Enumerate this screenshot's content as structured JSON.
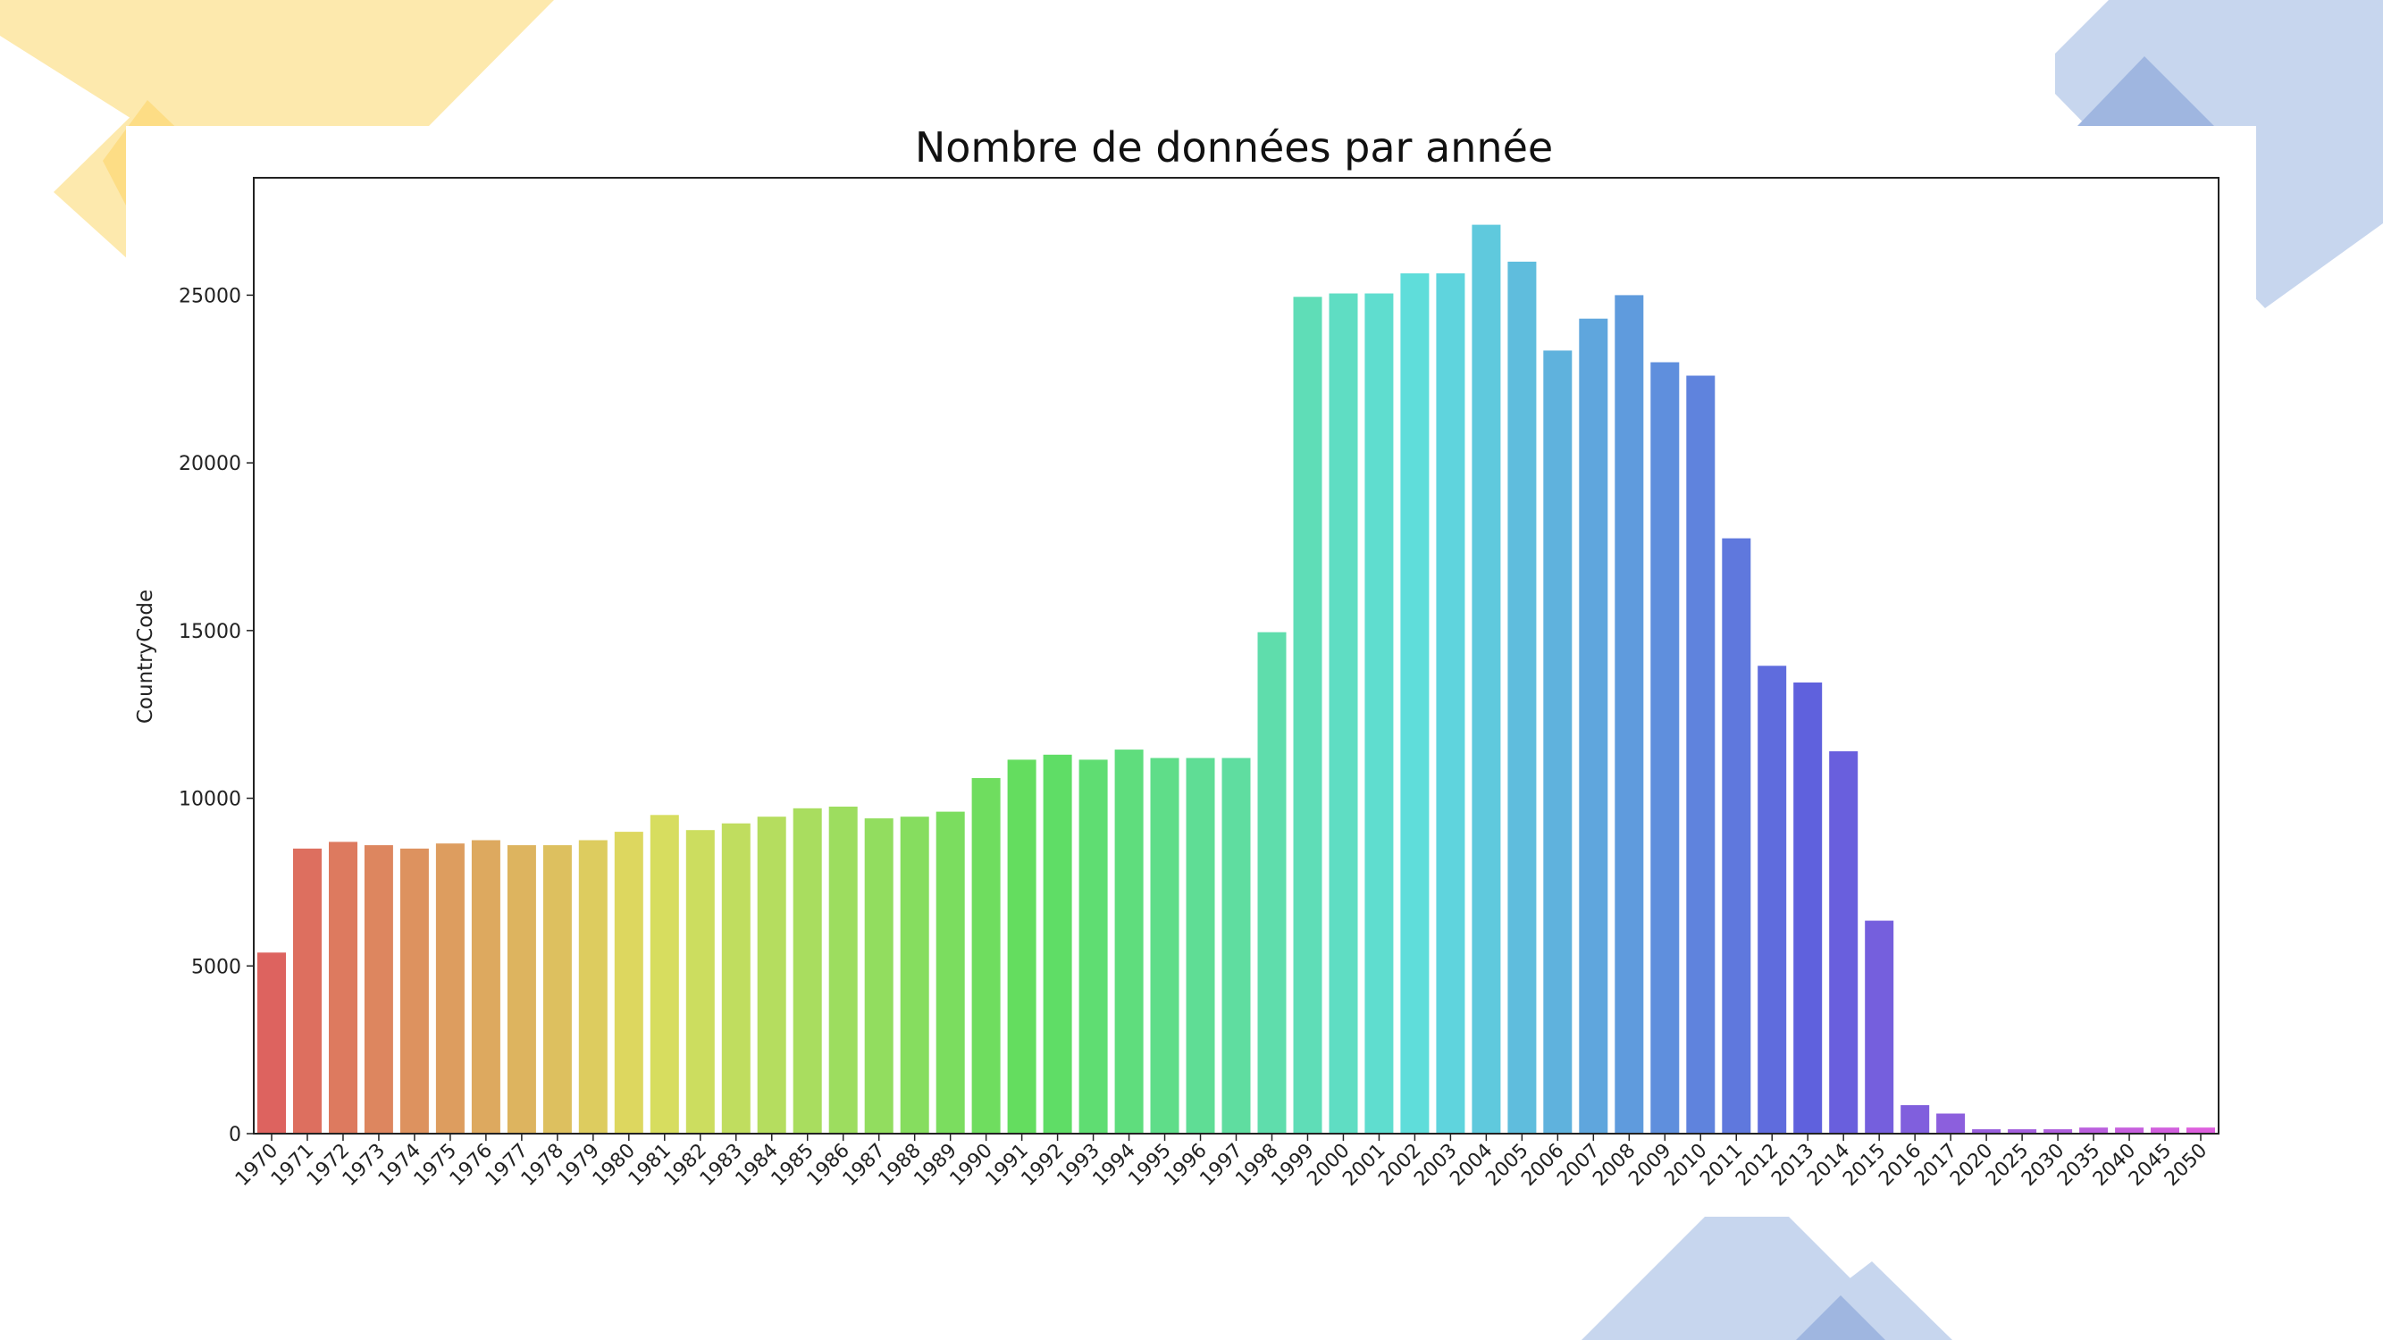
{
  "chart_data": {
    "type": "bar",
    "title": "Nombre de données par année",
    "xlabel": "",
    "ylabel": "CountryCode",
    "ylim": [
      0,
      28500
    ],
    "yticks": [
      0,
      5000,
      10000,
      15000,
      20000,
      25000
    ],
    "grid": false,
    "categories": [
      "1970",
      "1971",
      "1972",
      "1973",
      "1974",
      "1975",
      "1976",
      "1977",
      "1978",
      "1979",
      "1980",
      "1981",
      "1982",
      "1983",
      "1984",
      "1985",
      "1986",
      "1987",
      "1988",
      "1989",
      "1990",
      "1991",
      "1992",
      "1993",
      "1994",
      "1995",
      "1996",
      "1997",
      "1998",
      "1999",
      "2000",
      "2001",
      "2002",
      "2003",
      "2004",
      "2005",
      "2006",
      "2007",
      "2008",
      "2009",
      "2010",
      "2011",
      "2012",
      "2013",
      "2014",
      "2015",
      "2016",
      "2017",
      "2020",
      "2025",
      "2030",
      "2035",
      "2040",
      "2045",
      "2050"
    ],
    "values": [
      5400,
      8500,
      8700,
      8600,
      8500,
      8650,
      8750,
      8600,
      8600,
      8750,
      9000,
      9500,
      9050,
      9250,
      9450,
      9700,
      9750,
      9400,
      9450,
      9600,
      10600,
      11150,
      11300,
      11150,
      11450,
      11200,
      11200,
      11200,
      14950,
      24950,
      25050,
      25050,
      25650,
      25650,
      27100,
      26000,
      23350,
      24300,
      25000,
      23000,
      22600,
      17750,
      13950,
      13450,
      11400,
      6350,
      850,
      600,
      130,
      130,
      130,
      180,
      180,
      180,
      180
    ]
  },
  "colors": {
    "decor_yellow": "#fde9ad",
    "decor_yellow_dark": "#fcd97a",
    "decor_blue": "#c7d6ee",
    "decor_blue_dark": "#9fb6e0",
    "axis": "#222222"
  }
}
